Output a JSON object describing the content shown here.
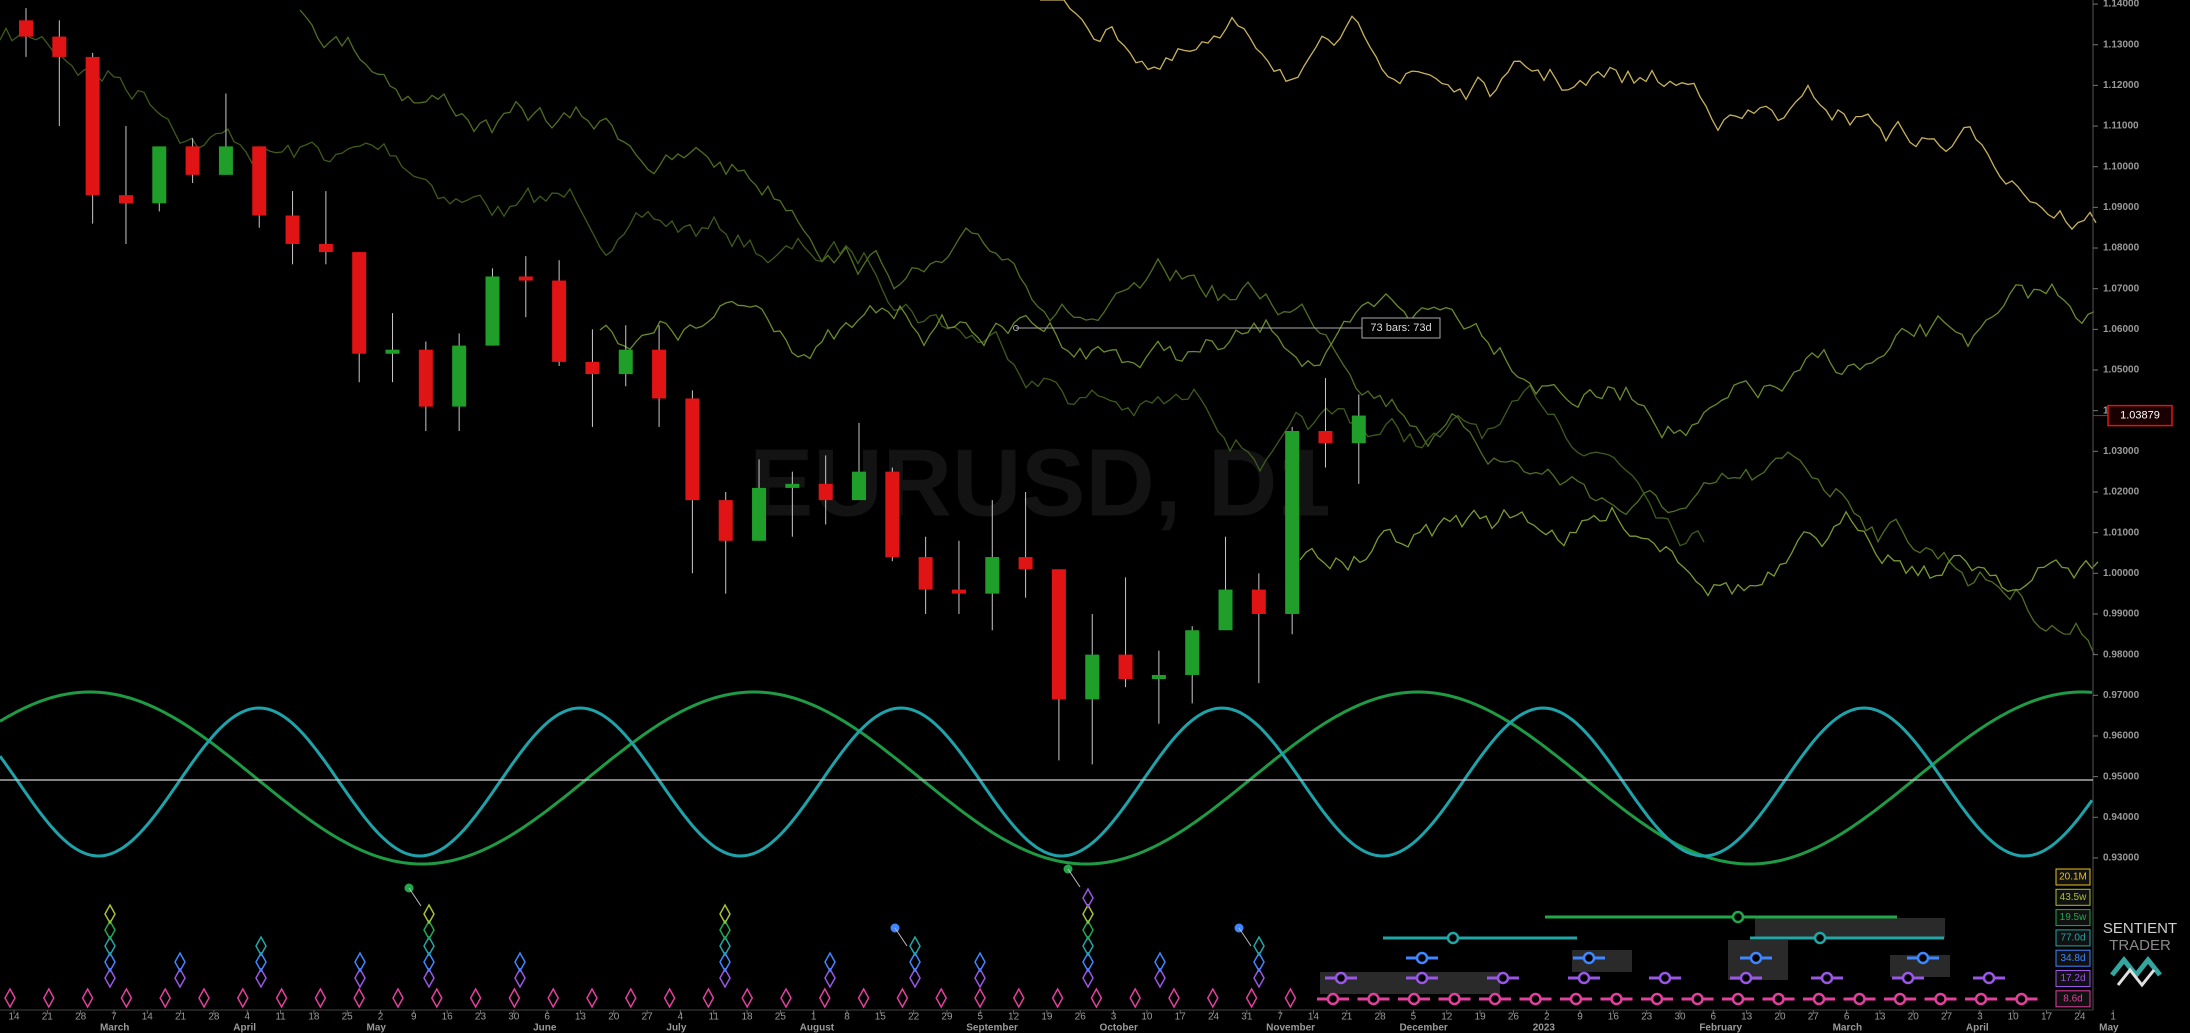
{
  "chart_data": {
    "type": "candlestick",
    "watermark": "EURUSD, D1",
    "x_labels": [
      "14",
      "21",
      "28",
      "7",
      "14",
      "21",
      "28",
      "4",
      "11",
      "18",
      "25",
      "2",
      "9",
      "16",
      "23",
      "30",
      "6",
      "13",
      "20",
      "27",
      "4",
      "11",
      "18",
      "25",
      "1",
      "8",
      "15",
      "22",
      "29",
      "5",
      "12",
      "19",
      "26",
      "3",
      "10",
      "17",
      "24",
      "31",
      "7",
      "14",
      "21",
      "28",
      "5",
      "12",
      "19",
      "26",
      "2",
      "9",
      "16",
      "23",
      "30",
      "6",
      "13",
      "20",
      "27",
      "6",
      "13",
      "20",
      "27",
      "3",
      "10",
      "17",
      "24",
      "1"
    ],
    "month_labels": [
      "March",
      "April",
      "May",
      "June",
      "July",
      "August",
      "September",
      "October",
      "November",
      "December",
      "2023",
      "February",
      "March",
      "April",
      "May"
    ],
    "candles": {
      "open": [
        1.136,
        1.132,
        1.127,
        1.093,
        1.091,
        1.105,
        1.098,
        1.105,
        1.088,
        1.081,
        1.079,
        1.054,
        1.055,
        1.041,
        1.056,
        1.073,
        1.072,
        1.052,
        1.049,
        1.055,
        1.043,
        1.018,
        1.008,
        1.021,
        1.022,
        1.018,
        1.025,
        1.004,
        0.996,
        0.995,
        1.004,
        1.001,
        0.969,
        0.98,
        0.974,
        0.975,
        0.986,
        0.996,
        0.99,
        1.035,
        1.032
      ],
      "high": [
        1.139,
        1.136,
        1.128,
        1.11,
        1.104,
        1.107,
        1.118,
        1.105,
        1.094,
        1.094,
        1.079,
        1.064,
        1.057,
        1.059,
        1.075,
        1.078,
        1.077,
        1.06,
        1.061,
        1.061,
        1.045,
        1.02,
        1.028,
        1.025,
        1.029,
        1.037,
        1.026,
        1.009,
        1.008,
        1.018,
        1.02,
        1.0,
        0.99,
        0.999,
        0.981,
        0.987,
        1.009,
        1.0,
        1.036,
        1.048,
        1.044
      ],
      "low": [
        1.127,
        1.11,
        1.086,
        1.081,
        1.089,
        1.096,
        1.098,
        1.085,
        1.076,
        1.076,
        1.047,
        1.047,
        1.035,
        1.035,
        1.056,
        1.063,
        1.051,
        1.036,
        1.046,
        1.036,
        1.0,
        0.995,
        1.008,
        1.009,
        1.012,
        1.019,
        1.003,
        0.99,
        0.99,
        0.986,
        0.994,
        0.954,
        0.953,
        0.972,
        0.963,
        0.968,
        0.986,
        0.973,
        0.985,
        1.026,
        1.022
      ],
      "close": [
        1.132,
        1.127,
        1.093,
        1.091,
        1.105,
        1.098,
        1.105,
        1.088,
        1.081,
        1.079,
        1.054,
        1.055,
        1.041,
        1.056,
        1.073,
        1.072,
        1.052,
        1.049,
        1.055,
        1.043,
        1.018,
        1.008,
        1.021,
        1.022,
        1.018,
        1.025,
        1.004,
        0.996,
        0.995,
        1.004,
        1.001,
        0.969,
        0.98,
        0.974,
        0.975,
        0.986,
        0.996,
        0.99,
        1.035,
        1.032,
        1.0388
      ]
    },
    "up_color": "#1f9e2a",
    "down_color": "#e01414",
    "ylim": [
      0.8926,
      1.141
    ],
    "yticks": [
      {
        "value": 0.93,
        "label": "0.93000"
      },
      {
        "value": 0.94,
        "label": "0.94000"
      },
      {
        "value": 0.95,
        "label": "0.95000"
      },
      {
        "value": 0.96,
        "label": "0.96000"
      },
      {
        "value": 0.97,
        "label": "0.97000"
      },
      {
        "value": 0.98,
        "label": "0.98000"
      },
      {
        "value": 0.99,
        "label": "0.99000"
      },
      {
        "value": 1.0,
        "label": "1.00000"
      },
      {
        "value": 1.01,
        "label": "1.01000"
      },
      {
        "value": 1.02,
        "label": "1.02000"
      },
      {
        "value": 1.03,
        "label": "1.03000"
      },
      {
        "value": 1.04,
        "label": "1.04000"
      },
      {
        "value": 1.05,
        "label": "1.05000"
      },
      {
        "value": 1.06,
        "label": "1.06000"
      },
      {
        "value": 1.07,
        "label": "1.07000"
      },
      {
        "value": 1.08,
        "label": "1.08000"
      },
      {
        "value": 1.09,
        "label": "1.09000"
      },
      {
        "value": 1.1,
        "label": "1.10000"
      },
      {
        "value": 1.11,
        "label": "1.11000"
      },
      {
        "value": 1.12,
        "label": "1.12000"
      },
      {
        "value": 1.13,
        "label": "1.13000"
      },
      {
        "value": 1.14,
        "label": "1.14000"
      }
    ],
    "last_price": 1.03879,
    "annotation": "73 bars: 73d",
    "cycles": [
      {
        "label": "20.1M",
        "color": "#e8c21e"
      },
      {
        "label": "43.5w",
        "color": "#a6c234"
      },
      {
        "label": "19.5w",
        "color": "#22a84a"
      },
      {
        "label": "77.0d",
        "color": "#22a6a6"
      },
      {
        "label": "34.8d",
        "color": "#3f86ff"
      },
      {
        "label": "17.2d",
        "color": "#9a56e6"
      },
      {
        "label": "8.6d",
        "color": "#e2409e"
      }
    ],
    "logo": {
      "line1": "SENTIENT",
      "line2": "TRADER"
    }
  }
}
